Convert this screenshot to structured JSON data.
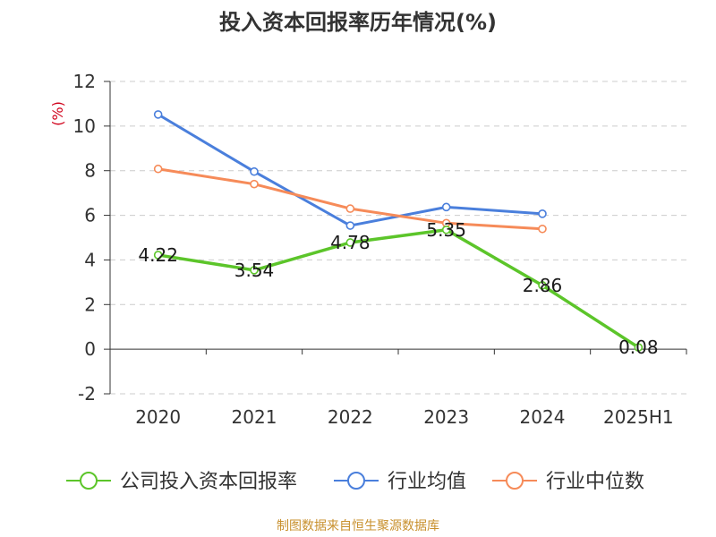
{
  "chart_data": {
    "type": "line",
    "title": "投入资本回报率历年情况(%)",
    "ylabel": "(%)",
    "categories": [
      "2020",
      "2021",
      "2022",
      "2023",
      "2024",
      "2025H1"
    ],
    "ylim": [
      -2,
      12
    ],
    "yticks": [
      -2,
      0,
      2,
      4,
      6,
      8,
      10,
      12
    ],
    "grid": true,
    "legend_position": "bottom",
    "series": [
      {
        "name": "公司投入资本回报率",
        "color": "#5cc52a",
        "values": [
          4.22,
          3.54,
          4.78,
          5.35,
          2.86,
          0.08
        ],
        "data_labels": [
          "4.22",
          "3.54",
          "4.78",
          "5.35",
          "2.86",
          "0.08"
        ]
      },
      {
        "name": "行业均值",
        "color": "#4a7fdc",
        "values": [
          10.52,
          7.96,
          5.54,
          6.37,
          6.07,
          null
        ]
      },
      {
        "name": "行业中位数",
        "color": "#f68b59",
        "values": [
          8.08,
          7.4,
          6.3,
          5.65,
          5.39,
          null
        ]
      }
    ],
    "source": "制图数据来自恒生聚源数据库"
  },
  "colors": {
    "title": "#333333",
    "axis": "#333333",
    "grid": "#cccccc",
    "ylabel": "#d0021b",
    "source": "#c8902d"
  }
}
